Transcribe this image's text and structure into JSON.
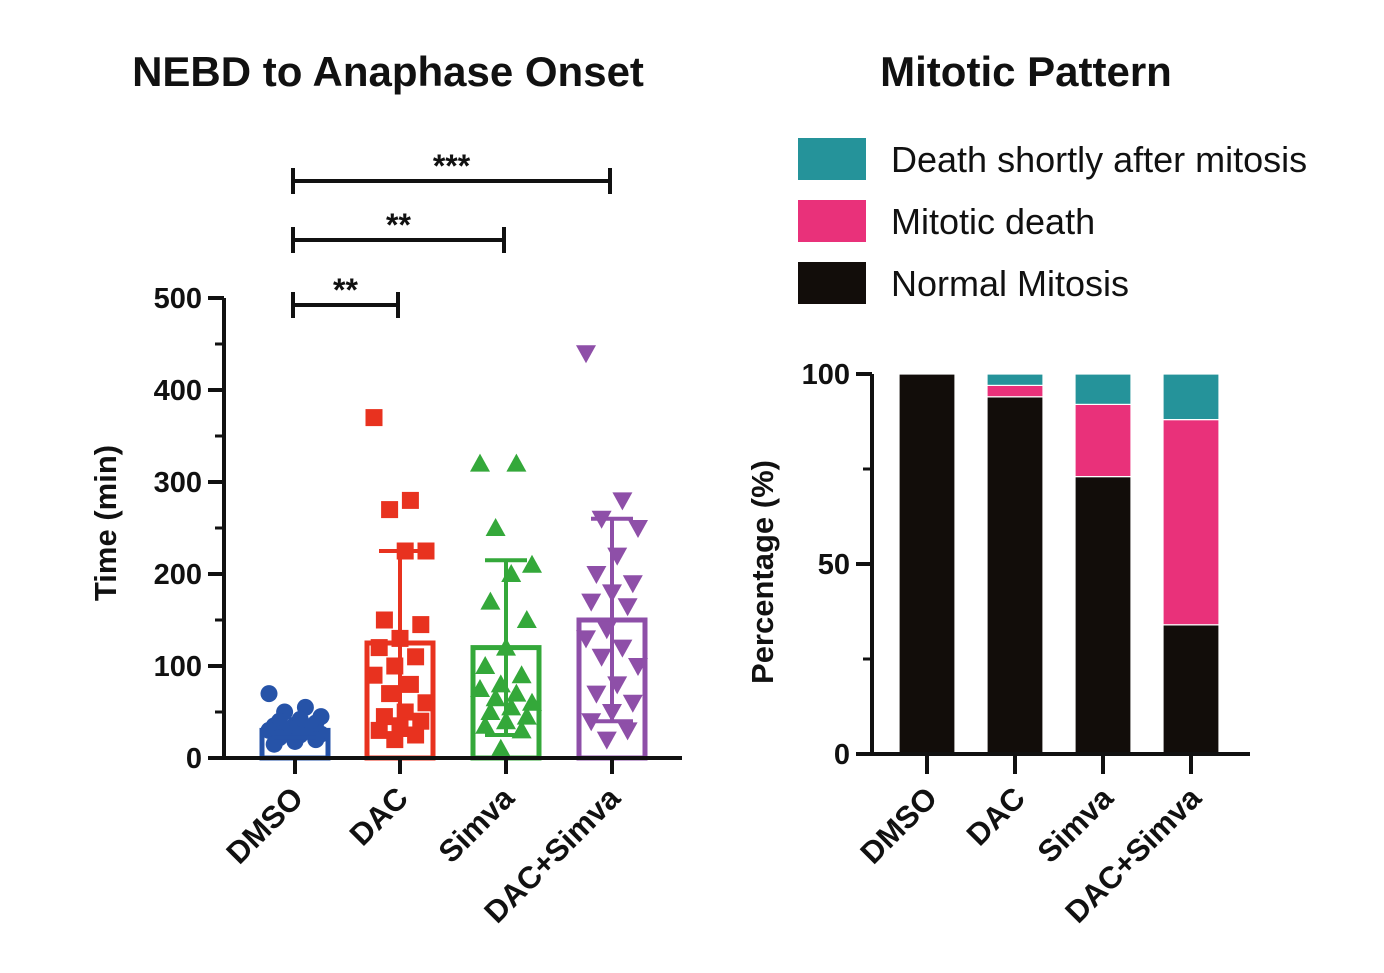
{
  "chart_data": [
    {
      "type": "bar",
      "subtype": "bar_with_scatter_and_sd",
      "title": "NEBD to Anaphase Onset",
      "xlabel": "",
      "ylabel": "Time (min)",
      "ylim": [
        0,
        500
      ],
      "yticks": [
        0,
        100,
        200,
        300,
        400,
        500
      ],
      "categories": [
        "DMSO",
        "DAC",
        "Simva",
        "DAC+Simva"
      ],
      "values": [
        30,
        125,
        120,
        150
      ],
      "sd": [
        8,
        100,
        95,
        110
      ],
      "colors": [
        "#2653a8",
        "#e8321f",
        "#34a83a",
        "#8e4fa8"
      ],
      "markers": [
        "circle",
        "square",
        "triangle-up",
        "triangle-down"
      ],
      "points": [
        [
          70,
          55,
          50,
          45,
          42,
          40,
          38,
          36,
          35,
          34,
          32,
          30,
          30,
          28,
          26,
          25,
          22,
          20,
          18,
          15
        ],
        [
          370,
          280,
          270,
          225,
          225,
          150,
          145,
          130,
          120,
          110,
          100,
          90,
          80,
          70,
          60,
          50,
          45,
          40,
          35,
          30,
          25,
          20
        ],
        [
          320,
          320,
          250,
          210,
          200,
          170,
          150,
          120,
          100,
          90,
          80,
          75,
          70,
          65,
          60,
          55,
          50,
          45,
          40,
          35,
          30,
          10
        ],
        [
          440,
          280,
          260,
          250,
          220,
          200,
          190,
          180,
          170,
          165,
          140,
          130,
          120,
          110,
          100,
          80,
          70,
          60,
          50,
          40,
          30,
          20
        ]
      ],
      "significance": [
        {
          "from": "DMSO",
          "to": "DAC",
          "label": "**"
        },
        {
          "from": "DMSO",
          "to": "Simva",
          "label": "**"
        },
        {
          "from": "DMSO",
          "to": "DAC+Simva",
          "label": "***"
        }
      ]
    },
    {
      "type": "bar",
      "subtype": "stacked",
      "title": "Mitotic Pattern",
      "xlabel": "",
      "ylabel": "Percentage (%)",
      "ylim": [
        0,
        100
      ],
      "yticks": [
        0,
        50,
        100
      ],
      "categories": [
        "DMSO",
        "DAC",
        "Simva",
        "DAC+Simva"
      ],
      "series": [
        {
          "name": "Normal Mitosis",
          "color": "#120d0a",
          "values": [
            100,
            94,
            73,
            34
          ]
        },
        {
          "name": "Mitotic death",
          "color": "#e9317a",
          "values": [
            0,
            3,
            19,
            54
          ]
        },
        {
          "name": "Death shortly after mitosis",
          "color": "#25939a",
          "values": [
            0,
            3,
            8,
            12
          ]
        }
      ],
      "legend": {
        "position": "top",
        "order": [
          "Death shortly after mitosis",
          "Mitotic death",
          "Normal Mitosis"
        ]
      }
    }
  ]
}
